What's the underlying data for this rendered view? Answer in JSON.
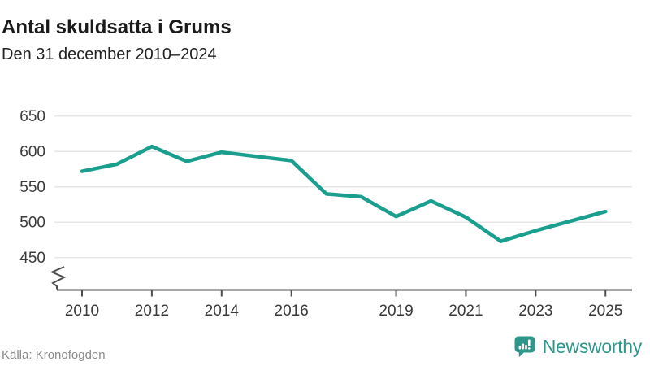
{
  "header": {
    "title": "Antal skuldsatta i Grums",
    "subtitle": "Den 31 december 2010–2024"
  },
  "chart_data": {
    "type": "line",
    "title": "Antal skuldsatta i Grums",
    "subtitle": "Den 31 december 2010–2024",
    "series_name": "Antal skuldsatta",
    "x": [
      2010,
      2011,
      2012,
      2013,
      2014,
      2015,
      2016,
      2017,
      2018,
      2019,
      2020,
      2021,
      2022,
      2023,
      2024
    ],
    "values": [
      572,
      582,
      607,
      586,
      599,
      593,
      587,
      540,
      536,
      508,
      530,
      507,
      473,
      488,
      515
    ],
    "y_ticks": [
      450,
      500,
      550,
      600,
      650
    ],
    "x_tick_years": [
      2010,
      2012,
      2014,
      2016,
      2019,
      2021,
      2023,
      2025
    ],
    "x_tick_labels": [
      "2010",
      "2012",
      "2014",
      "2016",
      "2019",
      "2021",
      "2023",
      "2025"
    ],
    "ylim": [
      450,
      650
    ],
    "axis_break": true,
    "grid": "horizontal",
    "legend": "none",
    "line_color": "#1a9e8e"
  },
  "footer": {
    "source": "Källa: Kronofogden",
    "brand": "Newsworthy"
  },
  "colors": {
    "accent": "#1a9e8e",
    "brand_teal": "#2f968b",
    "axis": "#4d4d4d",
    "grid": "#e7e7e7",
    "title_text": "#1a1a1a",
    "muted_text": "#8a8a8a"
  },
  "icons": {
    "brand_icon": "newsworthy-speech-bubble-bar-chart-icon"
  }
}
